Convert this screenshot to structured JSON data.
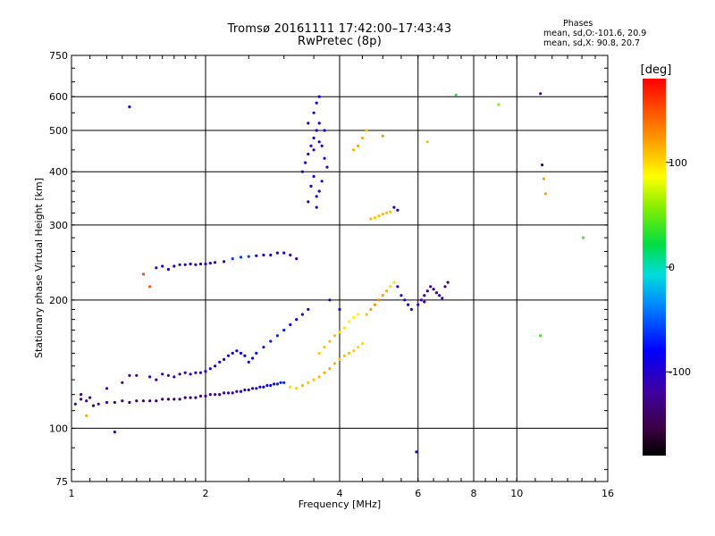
{
  "header": {
    "title_line1": "Tromsø 20161111 17:42:00–17:43:43",
    "title_line2": "RwPretec (8p)",
    "phases_label": "Phases",
    "phases_o": "mean, sd,O:-101.6, 20.9",
    "phases_x": "mean, sd,X:  90.8, 20.7"
  },
  "chart_data": {
    "type": "scatter",
    "xlabel": "Frequency [MHz]",
    "ylabel": "Stationary phase Virtual Height [km]",
    "x_scale": "log",
    "y_scale": "log",
    "xlim": [
      1,
      16
    ],
    "ylim": [
      75,
      750
    ],
    "x_ticks": [
      "1",
      "2",
      "4",
      "6",
      "8",
      "10",
      "16"
    ],
    "x_tick_values": [
      1,
      2,
      4,
      6,
      8,
      10,
      16
    ],
    "x_grid_values": [
      2,
      4,
      6,
      8,
      10
    ],
    "y_ticks": [
      "75",
      "100",
      "200",
      "300",
      "400",
      "500",
      "600",
      "750"
    ],
    "y_tick_values": [
      75,
      100,
      200,
      300,
      400,
      500,
      600,
      750
    ],
    "y_grid_values": [
      100,
      200,
      300,
      400,
      500,
      600
    ],
    "grid": true,
    "colorbar": {
      "label": "[deg]",
      "range": [
        -180,
        180
      ],
      "ticks": [
        "100",
        "0",
        "-100"
      ],
      "tick_values": [
        100,
        0,
        -100
      ],
      "colormap": "rainbow"
    },
    "series": [
      {
        "name": "",
        "points": [
          [
            1.02,
            114,
            -120
          ],
          [
            1.05,
            117,
            -125
          ],
          [
            1.08,
            116,
            -118
          ],
          [
            1.12,
            113,
            -122
          ],
          [
            1.15,
            114,
            -116
          ],
          [
            1.2,
            115,
            -120
          ],
          [
            1.25,
            115,
            -125
          ],
          [
            1.3,
            116,
            -130
          ],
          [
            1.35,
            115,
            -135
          ],
          [
            1.4,
            116,
            -140
          ],
          [
            1.45,
            116,
            -140
          ],
          [
            1.5,
            116,
            -138
          ],
          [
            1.55,
            116,
            -140
          ],
          [
            1.6,
            117,
            -138
          ],
          [
            1.65,
            117,
            -142
          ],
          [
            1.7,
            117,
            -140
          ],
          [
            1.75,
            117,
            -138
          ],
          [
            1.8,
            118,
            -140
          ],
          [
            1.85,
            118,
            -138
          ],
          [
            1.9,
            118,
            -136
          ],
          [
            1.95,
            119,
            -134
          ],
          [
            2.0,
            119,
            -130
          ],
          [
            2.05,
            120,
            -125
          ],
          [
            2.1,
            120,
            -120
          ],
          [
            2.15,
            120,
            -118
          ],
          [
            2.2,
            121,
            -116
          ],
          [
            2.25,
            121,
            -115
          ],
          [
            2.3,
            121,
            -115
          ],
          [
            2.35,
            122,
            -112
          ],
          [
            2.4,
            122,
            -110
          ],
          [
            2.45,
            123,
            -108
          ],
          [
            2.5,
            123,
            -105
          ],
          [
            2.55,
            124,
            -100
          ],
          [
            2.6,
            124,
            -100
          ],
          [
            2.65,
            125,
            -95
          ],
          [
            2.7,
            125,
            -90
          ],
          [
            2.75,
            126,
            -85
          ],
          [
            2.8,
            126,
            -80
          ],
          [
            2.85,
            127,
            -75
          ],
          [
            2.9,
            127,
            -72
          ],
          [
            2.95,
            128,
            -70
          ],
          [
            3.0,
            128,
            -68
          ]
        ]
      },
      {
        "name": "",
        "points": [
          [
            1.05,
            120,
            -130
          ],
          [
            1.1,
            118,
            -128
          ],
          [
            1.2,
            124,
            -126
          ],
          [
            1.3,
            128,
            -125
          ],
          [
            1.35,
            133,
            -130
          ],
          [
            1.4,
            133,
            -128
          ],
          [
            1.5,
            132,
            -126
          ],
          [
            1.55,
            130,
            -130
          ],
          [
            1.6,
            134,
            -128
          ],
          [
            1.65,
            133,
            -126
          ],
          [
            1.7,
            132,
            -124
          ],
          [
            1.75,
            134,
            -125
          ],
          [
            1.8,
            135,
            -120
          ],
          [
            1.85,
            134,
            -115
          ],
          [
            1.9,
            135,
            -110
          ],
          [
            1.95,
            135,
            -105
          ],
          [
            2.0,
            136,
            -102
          ],
          [
            2.05,
            138,
            -100
          ],
          [
            2.1,
            140,
            -100
          ],
          [
            2.15,
            143,
            -98
          ],
          [
            2.2,
            145,
            -95
          ],
          [
            2.25,
            148,
            -92
          ],
          [
            2.3,
            150,
            -90
          ],
          [
            2.35,
            152,
            -88
          ],
          [
            2.4,
            150,
            -85
          ],
          [
            2.45,
            148,
            -82
          ],
          [
            2.5,
            143,
            -80
          ],
          [
            2.55,
            146,
            -78
          ],
          [
            2.6,
            150,
            -76
          ],
          [
            2.7,
            155,
            -72
          ],
          [
            2.8,
            160,
            -70
          ],
          [
            2.9,
            165,
            -68
          ],
          [
            3.0,
            170,
            -70
          ],
          [
            3.1,
            175,
            -80
          ],
          [
            3.2,
            180,
            -95
          ],
          [
            3.3,
            185,
            -100
          ],
          [
            3.4,
            190,
            -105
          ]
        ]
      },
      {
        "name": "",
        "points": [
          [
            1.55,
            238,
            -110
          ],
          [
            1.6,
            240,
            -108
          ],
          [
            1.65,
            236,
            -100
          ],
          [
            1.7,
            240,
            -95
          ],
          [
            1.75,
            242,
            -100
          ],
          [
            1.8,
            242,
            -110
          ],
          [
            1.85,
            243,
            -115
          ],
          [
            1.9,
            242,
            -112
          ],
          [
            1.95,
            243,
            -110
          ],
          [
            2.0,
            243,
            -105
          ],
          [
            2.05,
            244,
            -108
          ],
          [
            2.1,
            245,
            -110
          ],
          [
            2.2,
            246,
            -110
          ],
          [
            2.3,
            250,
            -60
          ],
          [
            2.4,
            252,
            -60
          ],
          [
            2.5,
            253,
            -60
          ],
          [
            2.6,
            254,
            -90
          ],
          [
            2.7,
            255,
            -95
          ],
          [
            2.8,
            255,
            -100
          ],
          [
            2.9,
            258,
            -100
          ],
          [
            3.0,
            258,
            -105
          ],
          [
            3.1,
            255,
            -110
          ],
          [
            3.2,
            250,
            -110
          ]
        ]
      },
      {
        "name": "",
        "points": [
          [
            3.3,
            400,
            -100
          ],
          [
            3.35,
            420,
            -105
          ],
          [
            3.4,
            440,
            -110
          ],
          [
            3.45,
            460,
            -100
          ],
          [
            3.5,
            480,
            -95
          ],
          [
            3.55,
            500,
            -90
          ],
          [
            3.6,
            520,
            -85
          ],
          [
            3.65,
            460,
            -100
          ],
          [
            3.7,
            430,
            -105
          ],
          [
            3.75,
            410,
            -110
          ],
          [
            3.5,
            390,
            -100
          ],
          [
            3.45,
            370,
            -95
          ],
          [
            3.55,
            350,
            -100
          ],
          [
            3.6,
            360,
            -105
          ],
          [
            3.65,
            380,
            -95
          ],
          [
            3.5,
            550,
            -90
          ],
          [
            3.55,
            580,
            -85
          ],
          [
            3.6,
            600,
            -80
          ],
          [
            3.4,
            520,
            -110
          ],
          [
            3.5,
            450,
            -105
          ],
          [
            3.6,
            470,
            -95
          ],
          [
            3.7,
            500,
            -90
          ],
          [
            3.55,
            330,
            -100
          ],
          [
            3.4,
            340,
            -110
          ]
        ]
      },
      {
        "name": "",
        "points": [
          [
            3.1,
            125,
            100
          ],
          [
            3.2,
            124,
            105
          ],
          [
            3.3,
            126,
            110
          ],
          [
            3.4,
            128,
            108
          ],
          [
            3.5,
            130,
            110
          ],
          [
            3.6,
            132,
            112
          ],
          [
            3.7,
            135,
            115
          ],
          [
            3.8,
            138,
            115
          ],
          [
            3.9,
            142,
            112
          ],
          [
            4.0,
            145,
            110
          ],
          [
            4.1,
            148,
            108
          ],
          [
            4.2,
            150,
            110
          ],
          [
            4.3,
            152,
            105
          ],
          [
            4.4,
            155,
            100
          ],
          [
            4.5,
            158,
            100
          ],
          [
            3.6,
            150,
            105
          ],
          [
            3.7,
            155,
            108
          ],
          [
            3.8,
            160,
            110
          ],
          [
            3.9,
            165,
            108
          ],
          [
            4.0,
            168,
            100
          ],
          [
            4.1,
            172,
            95
          ],
          [
            4.2,
            178,
            90
          ],
          [
            4.3,
            182,
            90
          ],
          [
            4.4,
            185,
            88
          ]
        ]
      },
      {
        "name": "",
        "points": [
          [
            4.6,
            185,
            110
          ],
          [
            4.7,
            190,
            120
          ],
          [
            4.8,
            195,
            125
          ],
          [
            4.9,
            200,
            130
          ],
          [
            5.0,
            205,
            120
          ],
          [
            5.1,
            210,
            115
          ],
          [
            5.2,
            215,
            100
          ],
          [
            5.3,
            220,
            95
          ],
          [
            5.4,
            215,
            -100
          ],
          [
            5.5,
            205,
            -105
          ],
          [
            5.6,
            200,
            -100
          ],
          [
            5.7,
            195,
            -95
          ],
          [
            5.8,
            190,
            -100
          ],
          [
            4.7,
            310,
            110
          ],
          [
            4.8,
            312,
            105
          ],
          [
            4.9,
            315,
            110
          ],
          [
            5.0,
            318,
            112
          ],
          [
            5.1,
            320,
            108
          ],
          [
            5.2,
            322,
            110
          ],
          [
            5.3,
            330,
            -110
          ],
          [
            5.4,
            325,
            -105
          ],
          [
            4.5,
            480,
            115
          ],
          [
            4.6,
            500,
            110
          ],
          [
            4.4,
            460,
            120
          ],
          [
            4.3,
            450,
            115
          ]
        ]
      },
      {
        "name": "",
        "points": [
          [
            6.0,
            195,
            -110
          ],
          [
            6.1,
            200,
            -115
          ],
          [
            6.2,
            205,
            -120
          ],
          [
            6.3,
            210,
            -125
          ],
          [
            6.4,
            215,
            -120
          ],
          [
            6.5,
            212,
            -130
          ],
          [
            6.6,
            208,
            -125
          ],
          [
            6.7,
            205,
            -120
          ],
          [
            6.8,
            202,
            -118
          ],
          [
            6.9,
            215,
            -125
          ],
          [
            7.0,
            220,
            -130
          ],
          [
            6.2,
            198,
            -115
          ]
        ]
      },
      {
        "name": "",
        "points": [
          [
            1.35,
            568,
            -100
          ],
          [
            1.5,
            215,
            150
          ],
          [
            1.45,
            230,
            150
          ],
          [
            1.25,
            98,
            -100
          ],
          [
            1.08,
            107,
            115
          ],
          [
            5.0,
            485,
            125
          ],
          [
            6.3,
            470,
            110
          ],
          [
            7.3,
            605,
            30
          ],
          [
            9.1,
            575,
            60
          ],
          [
            11.3,
            610,
            -120
          ],
          [
            11.4,
            415,
            -130
          ],
          [
            11.5,
            385,
            120
          ],
          [
            11.6,
            355,
            120
          ],
          [
            11.3,
            165,
            40
          ],
          [
            14.1,
            280,
            40
          ],
          [
            5.95,
            88,
            -110
          ],
          [
            4.0,
            190,
            -100
          ],
          [
            3.8,
            200,
            -105
          ]
        ]
      }
    ]
  }
}
